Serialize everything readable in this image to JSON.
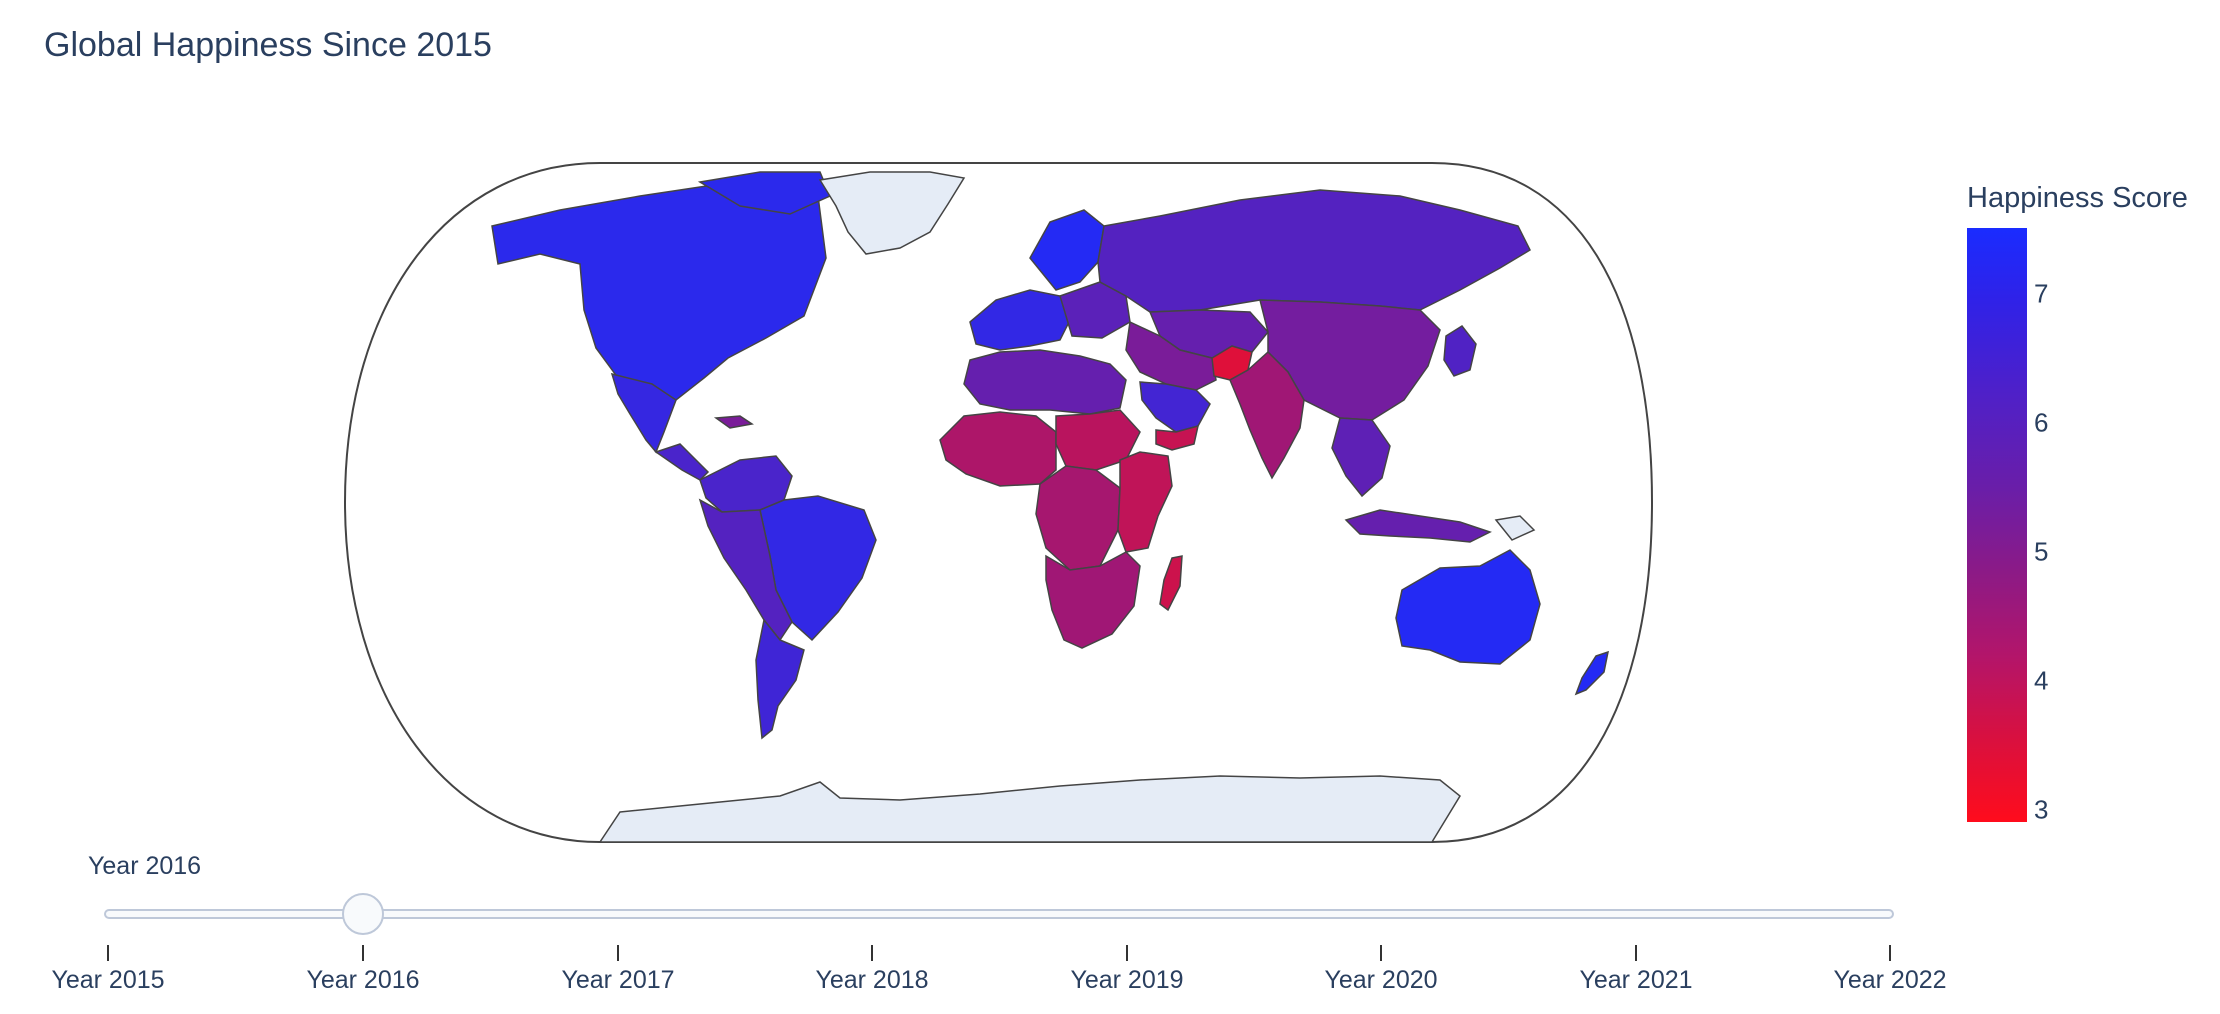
{
  "title": "Global Happiness Since 2015",
  "colorbar": {
    "title": "Happiness Score",
    "ticks": [
      "7",
      "6",
      "5",
      "4",
      "3"
    ],
    "range": [
      2.9,
      7.6
    ],
    "colors": {
      "high": "#1a2cff",
      "mid": "#6a1ea8",
      "low": "#ff0c1c",
      "no_data": "#e5ecf6",
      "border": "#444444"
    }
  },
  "slider": {
    "current_label": "Year 2016",
    "current_index": 1,
    "steps": [
      "Year 2015",
      "Year 2016",
      "Year 2017",
      "Year 2018",
      "Year 2019",
      "Year 2020",
      "Year 2021",
      "Year 2022"
    ]
  },
  "map": {
    "projection": "natural earth",
    "regions": {
      "north-america": 7.1,
      "greenland": null,
      "mexico": 6.8,
      "central-america": 6.2,
      "caribbean": 5.0,
      "south-america-north": 6.2,
      "brazil": 6.9,
      "andes": 5.9,
      "southern-cone": 6.5,
      "europe-north": 7.3,
      "europe-west": 6.9,
      "europe-east": 5.7,
      "russia": 5.9,
      "central-asia": 5.4,
      "china-mongolia": 5.1,
      "middle-east": 5.0,
      "saudi-arabia": 6.4,
      "yemen": 3.8,
      "afghanistan": 3.4,
      "south-asia": 4.4,
      "southeast-asia": 5.6,
      "japan-korea": 6.0,
      "north-africa": 5.4,
      "west-africa": 4.2,
      "sahel": 4.0,
      "central-africa": 4.3,
      "east-africa": 3.9,
      "southern-africa": 4.4,
      "madagascar": 3.7,
      "australia": 7.3,
      "new-zealand": 7.3,
      "indonesia": 5.4,
      "papua-new-guinea": null,
      "antarctica": null
    }
  }
}
